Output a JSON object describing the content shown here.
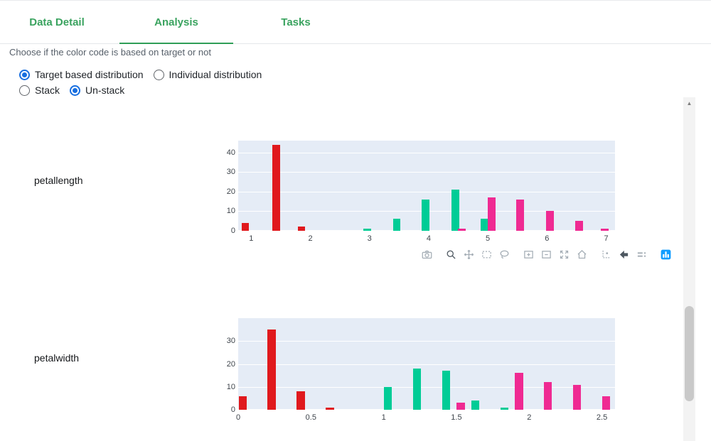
{
  "tabs": [
    {
      "label": "Data Detail",
      "active": false
    },
    {
      "label": "Analysis",
      "active": true
    },
    {
      "label": "Tasks",
      "active": false
    }
  ],
  "controls": {
    "hint": "Choose if the color code is based on target or not",
    "radio_groups": [
      {
        "options": [
          {
            "label": "Target based distribution",
            "selected": true
          },
          {
            "label": "Individual distribution",
            "selected": false
          }
        ]
      },
      {
        "options": [
          {
            "label": "Stack",
            "selected": false
          },
          {
            "label": "Un-stack",
            "selected": true
          }
        ]
      }
    ]
  },
  "colors": {
    "tab_green": "#3aa35f",
    "radio_blue": "#186fe0",
    "plot_bg": "#e5ecf6",
    "bar_red": "#e0191d",
    "bar_green": "#00cc96",
    "bar_pink": "#ef2a92",
    "modebar_icon": "#a4adb5",
    "modebar_active": "#4d5760",
    "logo_blue": "#119dff"
  },
  "modebar": {
    "icons": [
      {
        "name": "camera-icon",
        "active": false,
        "group_start": false
      },
      {
        "name": "zoom-icon",
        "active": true,
        "group_start": true
      },
      {
        "name": "pan-icon",
        "active": false,
        "group_start": false
      },
      {
        "name": "box-select-icon",
        "active": false,
        "group_start": false
      },
      {
        "name": "lasso-select-icon",
        "active": false,
        "group_start": false
      },
      {
        "name": "zoom-in-icon",
        "active": false,
        "group_start": true
      },
      {
        "name": "zoom-out-icon",
        "active": false,
        "group_start": false
      },
      {
        "name": "autoscale-icon",
        "active": false,
        "group_start": false
      },
      {
        "name": "reset-axes-icon",
        "active": false,
        "group_start": false
      },
      {
        "name": "spike-lines-icon",
        "active": false,
        "group_start": true
      },
      {
        "name": "closest-data-icon",
        "active": true,
        "group_start": false
      },
      {
        "name": "compare-data-icon",
        "active": false,
        "group_start": false
      },
      {
        "name": "plotly-logo-icon",
        "active": false,
        "group_start": true
      }
    ]
  },
  "chart_data": [
    {
      "type": "bar",
      "title": "petallength",
      "xlabel": "",
      "ylabel": "",
      "xlim": [
        0.78,
        7.15
      ],
      "ylim": [
        0,
        46
      ],
      "xticks": [
        1,
        2,
        3,
        4,
        5,
        6,
        7
      ],
      "yticks": [
        0,
        10,
        20,
        30,
        40
      ],
      "bar_width": 0.13,
      "grid": true,
      "legend": "none",
      "series": [
        {
          "name": "red",
          "color": "#e0191d",
          "points": [
            [
              0.9,
              4
            ],
            [
              1.42,
              44
            ],
            [
              1.85,
              2
            ]
          ]
        },
        {
          "name": "green",
          "color": "#00cc96",
          "points": [
            [
              2.96,
              1
            ],
            [
              3.46,
              6
            ],
            [
              3.95,
              16
            ],
            [
              4.45,
              21
            ],
            [
              4.94,
              6
            ]
          ]
        },
        {
          "name": "pink",
          "color": "#ef2a92",
          "points": [
            [
              4.56,
              1
            ],
            [
              5.06,
              17
            ],
            [
              5.55,
              16
            ],
            [
              6.05,
              10
            ],
            [
              6.54,
              5
            ],
            [
              6.98,
              1
            ]
          ]
        }
      ]
    },
    {
      "type": "bar",
      "title": "petalwidth",
      "xlabel": "",
      "ylabel": "",
      "xlim": [
        0,
        2.59
      ],
      "ylim": [
        0,
        40
      ],
      "xticks": [
        0,
        0.5,
        1,
        1.5,
        2,
        2.5
      ],
      "yticks": [
        0,
        10,
        20,
        30
      ],
      "bar_width": 0.055,
      "grid": true,
      "legend": "none",
      "series": [
        {
          "name": "red",
          "color": "#e0191d",
          "points": [
            [
              0.03,
              6
            ],
            [
              0.23,
              35
            ],
            [
              0.43,
              8
            ],
            [
              0.63,
              1
            ]
          ]
        },
        {
          "name": "green",
          "color": "#00cc96",
          "points": [
            [
              1.03,
              10
            ],
            [
              1.23,
              18
            ],
            [
              1.43,
              17
            ],
            [
              1.63,
              4
            ],
            [
              1.83,
              1
            ]
          ]
        },
        {
          "name": "pink",
          "color": "#ef2a92",
          "points": [
            [
              1.53,
              3
            ],
            [
              1.93,
              16
            ],
            [
              2.13,
              12
            ],
            [
              2.33,
              11
            ],
            [
              2.53,
              6
            ]
          ]
        }
      ]
    }
  ],
  "scrollbar": {
    "up_arrow": "▲"
  }
}
